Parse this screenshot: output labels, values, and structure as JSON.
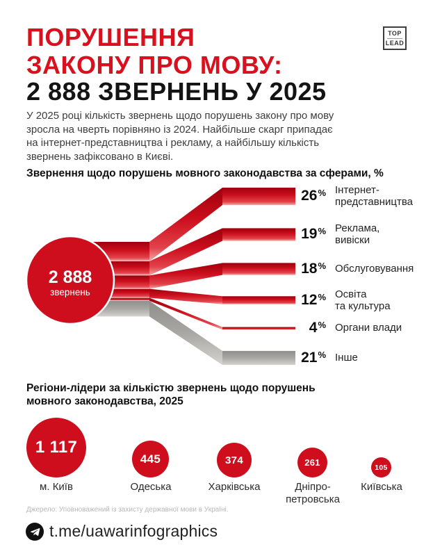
{
  "header": {
    "title_line1": "ПОРУШЕННЯ",
    "title_line2": "ЗАКОНУ ПРО МОВУ:",
    "title_line3": "2 888 ЗВЕРНЕНЬ У 2025",
    "logo_top": "TOP",
    "logo_lead": "LEAD"
  },
  "intro": "У 2025 році кількість звернень щодо порушень закону про мову\nзросла на чверть порівняно із 2024. Найбільше скарг припадає\nна інтернет-представництва і рекламу, а найбільшу кількість\nзвернень зафіксовано в Києві.",
  "sankey": {
    "heading": "Звернення щодо порушень мовного законодавства за сферами, %",
    "total_display": "2 888",
    "total_label": "звернень",
    "percent_sign": "%",
    "items": [
      {
        "label": "Інтернет-\nпредставництва",
        "color": "red"
      },
      {
        "label": "Реклама,\nвивіски",
        "color": "red"
      },
      {
        "label": "Обслуговування",
        "color": "red"
      },
      {
        "label": "Освіта\nта культура",
        "color": "red"
      },
      {
        "label": "Органи влади",
        "color": "red"
      },
      {
        "label": "Інше",
        "color": "gray"
      }
    ]
  },
  "regions": {
    "heading": "Регіони-лідери за кількістю звернень щодо порушень\nмовного законодавства, 2025",
    "items": [
      {
        "display": "1 117",
        "label": "м. Київ"
      },
      {
        "display": "445",
        "label": "Одеська"
      },
      {
        "display": "374",
        "label": "Харківська"
      },
      {
        "display": "261",
        "label": "Дніпро-\nпетровська"
      },
      {
        "display": "105",
        "label": "Київська"
      }
    ]
  },
  "source": "Джерело: Уповноважений із захисту державної мови в Україні.",
  "footer": {
    "link": "t.me/uawarinfographics",
    "icon": "telegram-icon"
  },
  "colors": {
    "red": "#ce0e1d",
    "gray": "#a9a8a4",
    "title_red": "#d8111e",
    "text_dark": "#1a1a1a"
  },
  "chart_data": [
    {
      "type": "bar",
      "subtype": "sankey-flow",
      "title": "Звернення щодо порушень мовного законодавства за сферами, %",
      "categories": [
        "Інтернет-представництва",
        "Реклама, вивіски",
        "Обслуговування",
        "Освіта та культура",
        "Органи влади",
        "Інше"
      ],
      "values": [
        26,
        19,
        18,
        12,
        4,
        21
      ],
      "unit": "%",
      "total": {
        "value": 2888,
        "display": "2 888",
        "label": "звернень"
      },
      "colors": [
        "red",
        "red",
        "red",
        "red",
        "red",
        "gray"
      ]
    },
    {
      "type": "bar",
      "subtype": "bubble",
      "title": "Регіони-лідери за кількістю звернень щодо порушень мовного законодавства, 2025",
      "categories": [
        "м. Київ",
        "Одеська",
        "Харківська",
        "Дніпропетровська",
        "Київська"
      ],
      "values": [
        1117,
        445,
        374,
        261,
        105
      ]
    }
  ]
}
